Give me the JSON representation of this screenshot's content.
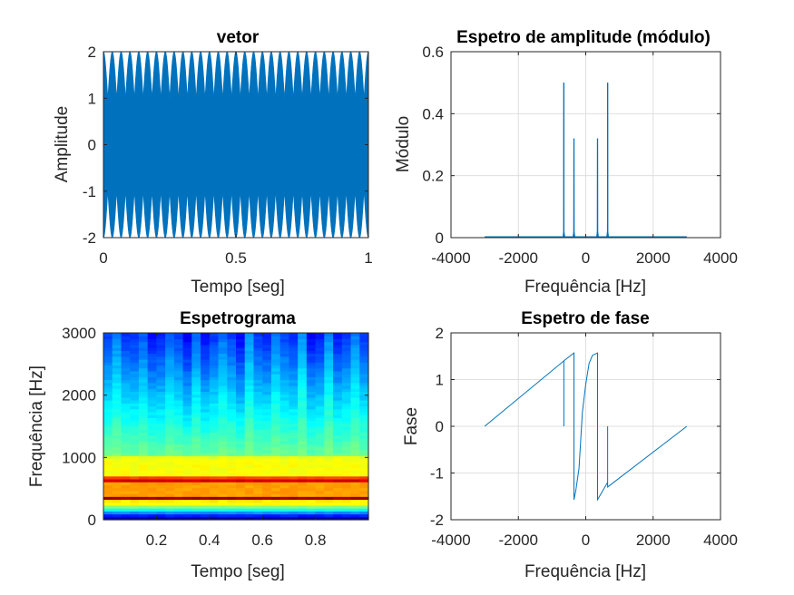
{
  "figure": {
    "background": "#ffffff"
  },
  "chart_data": [
    {
      "id": "vetor",
      "type": "line",
      "title": "vetor",
      "xlabel": "Tempo [seg]",
      "ylabel": "Amplitude",
      "xlim": [
        0,
        1
      ],
      "ylim": [
        -2,
        2
      ],
      "xticks": [
        0,
        0.5,
        1
      ],
      "xtick_labels": [
        "0",
        "0.5",
        "1"
      ],
      "yticks": [
        -2,
        -1,
        0,
        1,
        2
      ],
      "ytick_labels": [
        "-2",
        "-1",
        "0",
        "1",
        "2"
      ],
      "grid": false,
      "color": "#0072bd",
      "description_series": {
        "name": "",
        "components": [
          {
            "frequency_hz": 350,
            "amplitude": 1
          },
          {
            "frequency_hz": 650,
            "amplitude": 1
          }
        ],
        "envelope_periods": 30,
        "peak_min": 1.0,
        "peak_max": 2.0
      }
    },
    {
      "id": "amplitude-spectrum",
      "type": "line",
      "title": "Espetro de amplitude (módulo)",
      "xlabel": "Frequência [Hz]",
      "ylabel": "Módulo",
      "xlim": [
        -4000,
        4000
      ],
      "ylim": [
        0,
        0.6
      ],
      "xticks": [
        -4000,
        -2000,
        0,
        2000,
        4000
      ],
      "xtick_labels": [
        "-4000",
        "-2000",
        "0",
        "2000",
        "4000"
      ],
      "yticks": [
        0,
        0.2,
        0.4,
        0.6
      ],
      "ytick_labels": [
        "0",
        "0.2",
        "0.4",
        "0.6"
      ],
      "grid": true,
      "color": "#0072bd",
      "line_range": [
        -3000,
        3000
      ],
      "peaks": [
        {
          "x": -650,
          "y": 0.5
        },
        {
          "x": -350,
          "y": 0.32
        },
        {
          "x": 350,
          "y": 0.32
        },
        {
          "x": 650,
          "y": 0.5
        }
      ]
    },
    {
      "id": "spectrogram",
      "type": "heatmap",
      "title": "Espetrograma",
      "xlabel": "Tempo [seg]",
      "ylabel": "Frequência [Hz]",
      "xlim": [
        0,
        1
      ],
      "ylim": [
        0,
        3000
      ],
      "xticks": [
        0.2,
        0.4,
        0.6,
        0.8
      ],
      "xtick_labels": [
        "0.2",
        "0.4",
        "0.6",
        "0.8"
      ],
      "yticks": [
        0,
        1000,
        2000,
        3000
      ],
      "ytick_labels": [
        "0",
        "1000",
        "2000",
        "3000"
      ],
      "grid": false,
      "colormap": "jet",
      "bands": [
        {
          "freq_hz": 650,
          "level": "max"
        },
        {
          "freq_hz": 350,
          "level": "max"
        }
      ],
      "time_columns": 30
    },
    {
      "id": "phase-spectrum",
      "type": "line",
      "title": "Espetro de fase",
      "xlabel": "Frequência [Hz]",
      "ylabel": "Fase",
      "xlim": [
        -4000,
        4000
      ],
      "ylim": [
        -2,
        2
      ],
      "xticks": [
        -4000,
        -2000,
        0,
        2000,
        4000
      ],
      "xtick_labels": [
        "-4000",
        "-2000",
        "0",
        "2000",
        "4000"
      ],
      "yticks": [
        -2,
        -1,
        0,
        1,
        2
      ],
      "ytick_labels": [
        "-2",
        "-1",
        "0",
        "1",
        "2"
      ],
      "grid": true,
      "color": "#0072bd",
      "points": [
        [
          -3000,
          0.0
        ],
        [
          -650,
          1.4
        ],
        [
          -650,
          0.0
        ],
        [
          -650,
          1.4
        ],
        [
          -350,
          1.57
        ],
        [
          -350,
          -1.57
        ],
        [
          -300,
          -1.4
        ],
        [
          -200,
          -0.9
        ],
        [
          -100,
          0.3
        ],
        [
          0,
          0.9
        ],
        [
          100,
          1.35
        ],
        [
          200,
          1.52
        ],
        [
          350,
          1.57
        ],
        [
          350,
          -1.57
        ],
        [
          650,
          -1.2
        ],
        [
          650,
          0.0
        ],
        [
          650,
          -1.3
        ],
        [
          3000,
          0.0
        ]
      ]
    }
  ]
}
